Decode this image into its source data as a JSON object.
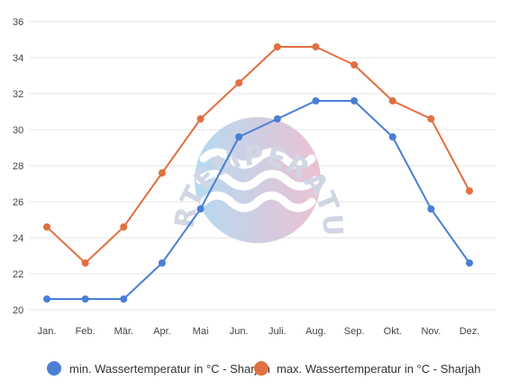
{
  "chart_data": {
    "type": "line",
    "categories": [
      "Jan.",
      "Feb.",
      "Mär.",
      "Apr.",
      "Mai",
      "Jun.",
      "Juli.",
      "Aug.",
      "Sep.",
      "Okt.",
      "Nov.",
      "Dez."
    ],
    "series": [
      {
        "name": "min. Wassertemperatur in °C - Sharjah",
        "color": "#4a7fd4",
        "values": [
          20.6,
          20.6,
          20.6,
          22.6,
          25.6,
          29.6,
          30.6,
          31.6,
          31.6,
          29.6,
          25.6,
          22.6
        ]
      },
      {
        "name": "max. Wassertemperatur in °C - Sharjah",
        "color": "#e07040",
        "values": [
          24.6,
          22.6,
          24.6,
          27.6,
          30.6,
          32.6,
          34.6,
          34.6,
          33.6,
          31.6,
          30.6,
          26.6
        ]
      }
    ],
    "yticks": [
      "20",
      "22",
      "24",
      "26",
      "28",
      "30",
      "32",
      "34",
      "36"
    ],
    "ylim": [
      20,
      36
    ],
    "grid": true,
    "legend": "bottom"
  },
  "watermark": {
    "text": "WASSERTEMPERATUR.ORG"
  }
}
